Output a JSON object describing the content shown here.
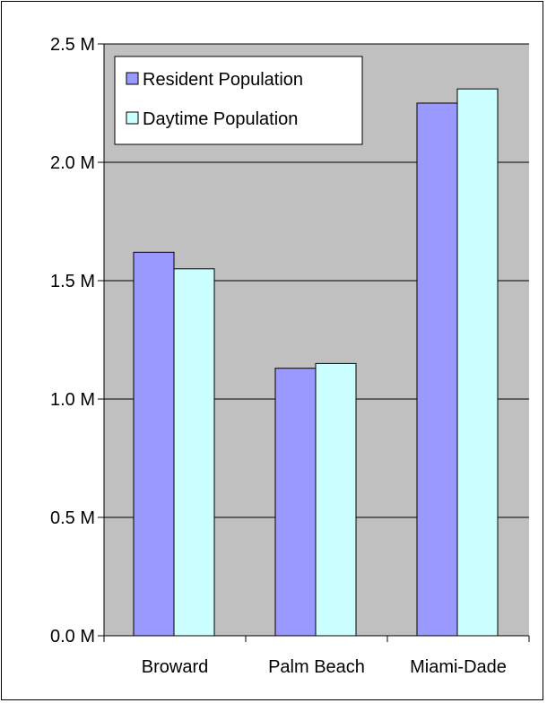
{
  "chart_data": {
    "type": "bar",
    "categories": [
      "Broward",
      "Palm Beach",
      "Miami-Dade"
    ],
    "series": [
      {
        "name": "Resident Population",
        "values": [
          1.62,
          1.13,
          2.25
        ],
        "color": "#9999ff"
      },
      {
        "name": "Daytime Population",
        "values": [
          1.55,
          1.15,
          2.31
        ],
        "color": "#ccffff"
      }
    ],
    "y_ticks": [
      0.0,
      0.5,
      1.0,
      1.5,
      2.0,
      2.5
    ],
    "y_tick_labels": [
      "0.0 M",
      "0.5 M",
      "1.0 M",
      "1.5 M",
      "2.0 M",
      "2.5 M"
    ],
    "ylim": [
      0,
      2.5
    ],
    "grid": true,
    "plot_background": "#c0c0c0",
    "legend_position": "top-left",
    "title": "",
    "xlabel": "",
    "ylabel": ""
  }
}
